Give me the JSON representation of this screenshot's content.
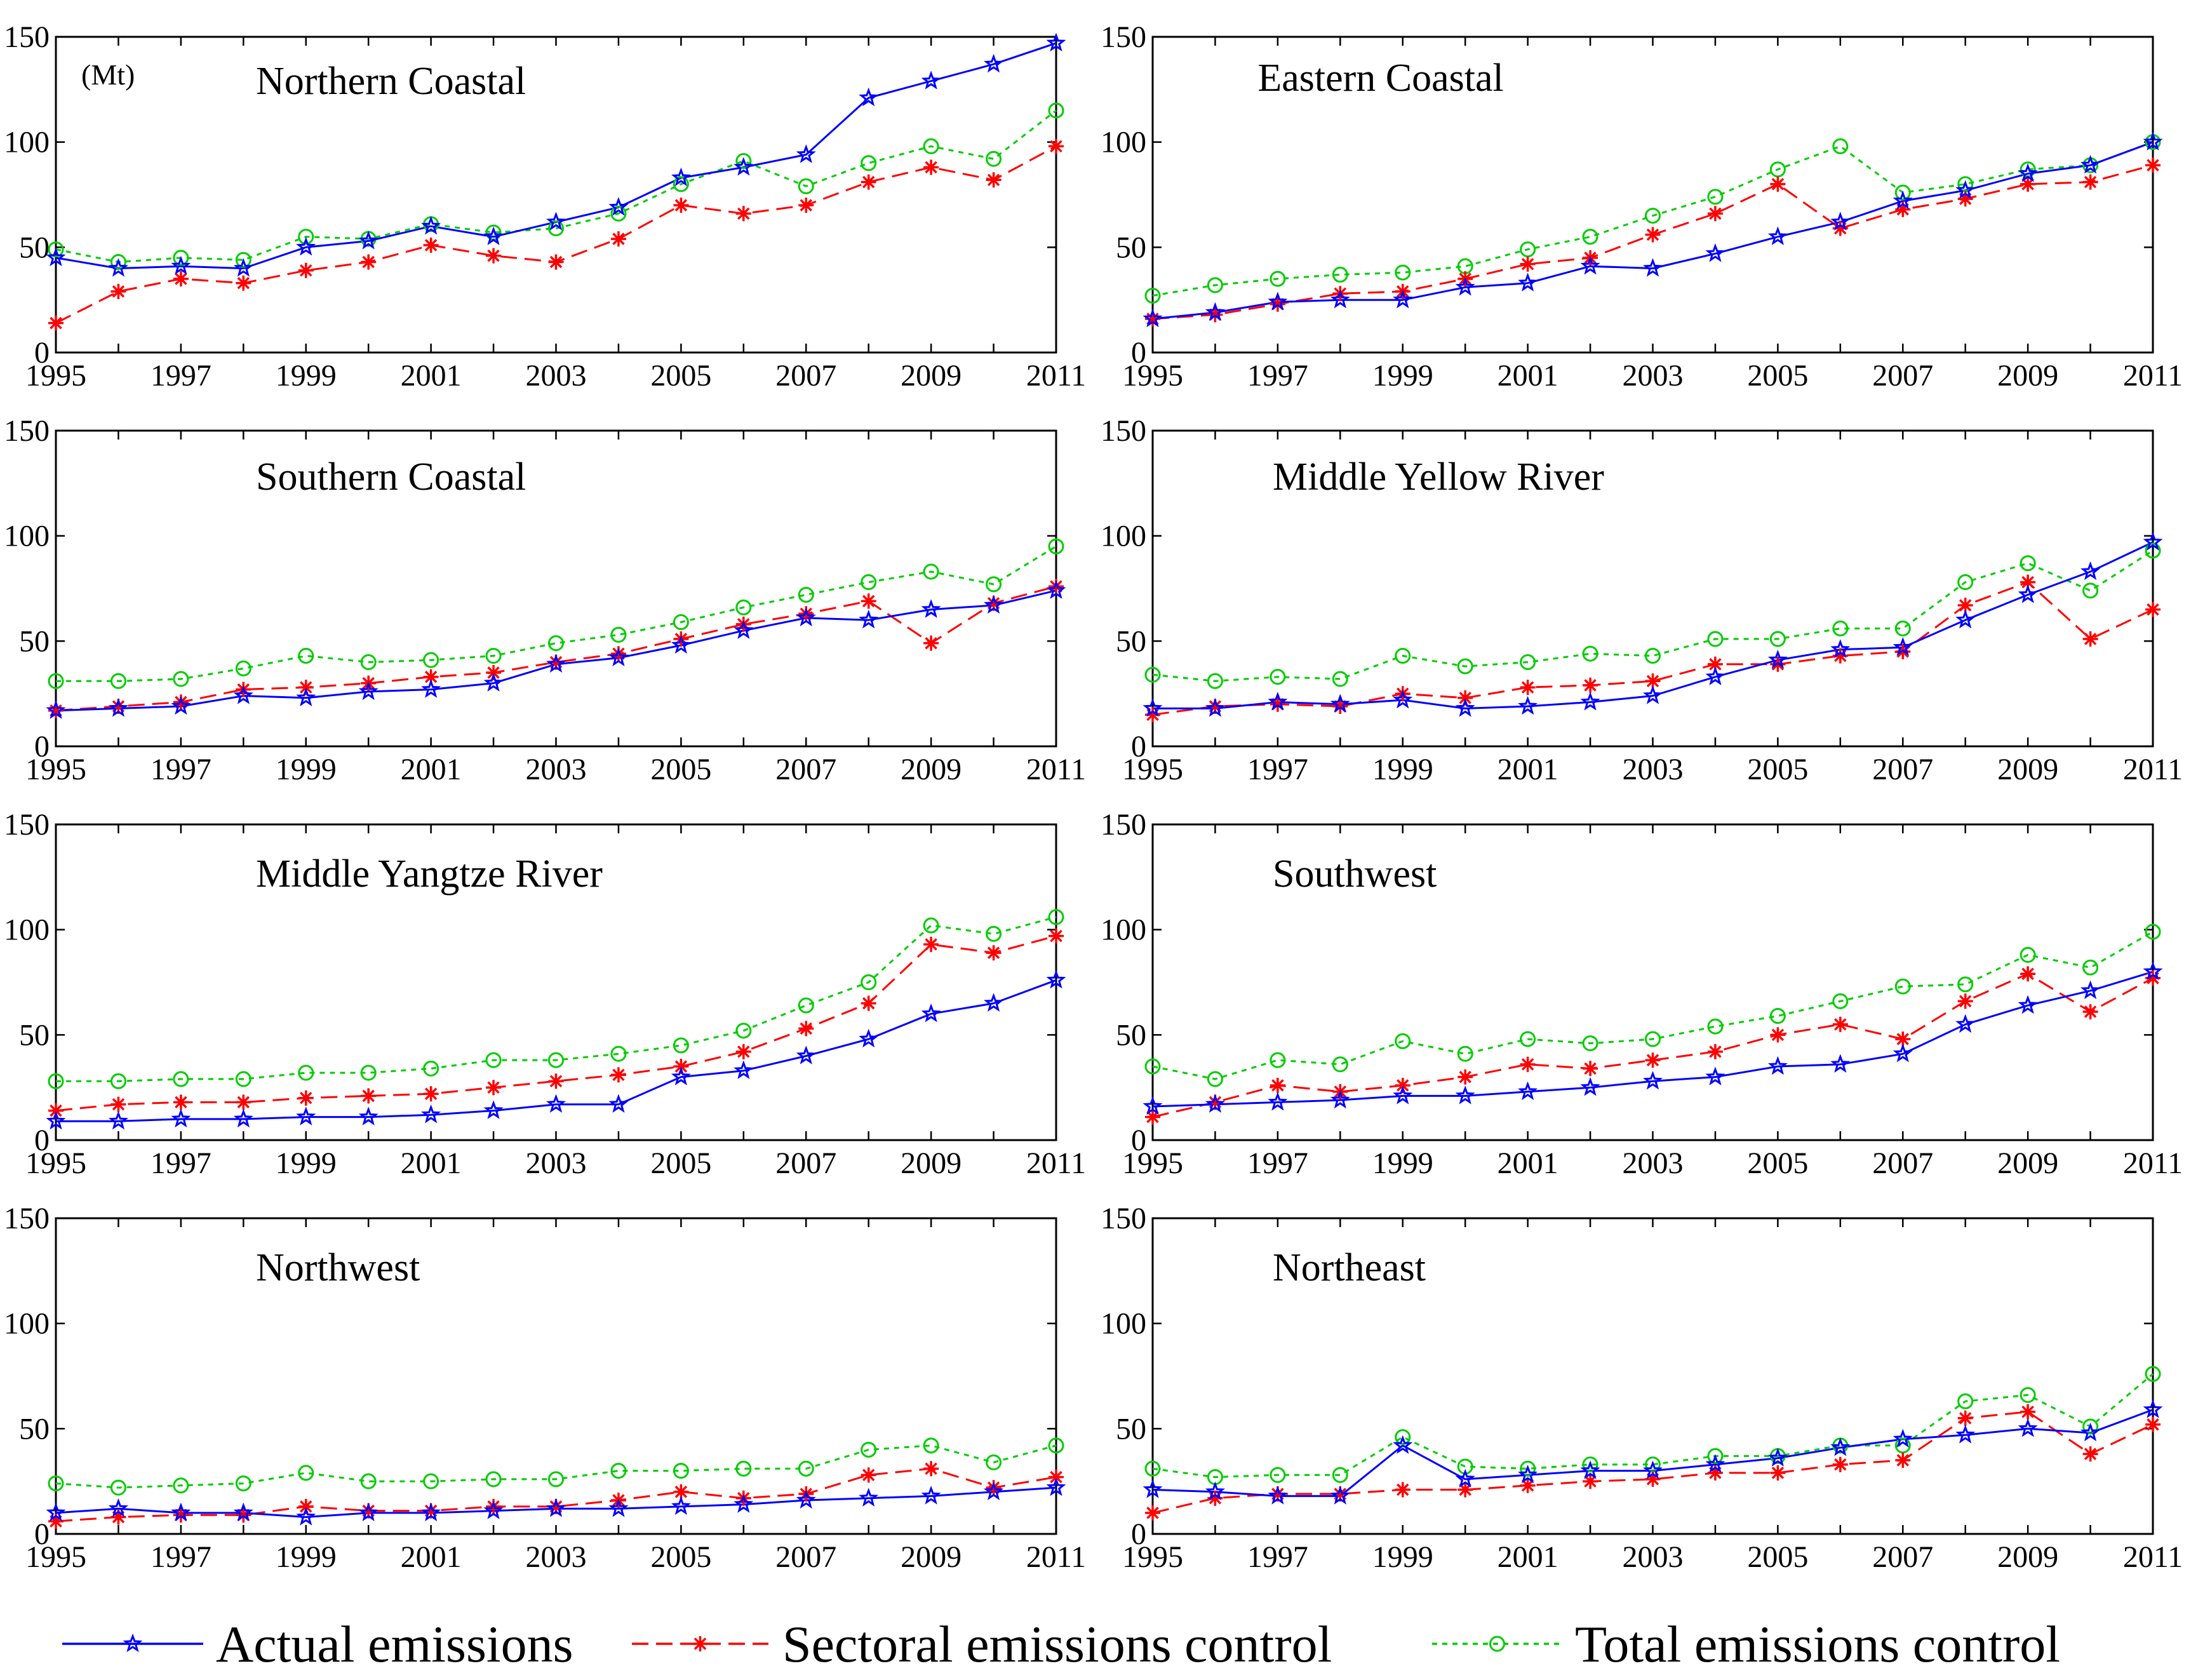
{
  "legend": {
    "actual": "Actual emissions",
    "sectoral": "Sectoral emissions control",
    "total": "Total emissions control"
  },
  "colors": {
    "actual": "#0000ff",
    "sectoral": "#ff0000",
    "total": "#00cc00"
  },
  "chart_data": [
    {
      "type": "line",
      "title": "Northern Coastal",
      "unit": "(Mt)",
      "x": [
        1995,
        1996,
        1997,
        1998,
        1999,
        2000,
        2001,
        2002,
        2003,
        2004,
        2005,
        2006,
        2007,
        2008,
        2009,
        2010,
        2011
      ],
      "ylim": [
        0,
        150
      ],
      "yticks": [
        0,
        50,
        100,
        150
      ],
      "xticks": [
        1995,
        1997,
        1999,
        2001,
        2003,
        2005,
        2007,
        2009,
        2011
      ],
      "series": [
        {
          "name": "Actual emissions",
          "values": [
            45,
            40,
            41,
            40,
            50,
            53,
            60,
            55,
            62,
            69,
            83,
            88,
            94,
            121,
            129,
            137,
            147
          ]
        },
        {
          "name": "Sectoral emissions control",
          "values": [
            14,
            29,
            35,
            33,
            39,
            43,
            51,
            46,
            43,
            54,
            70,
            66,
            70,
            81,
            88,
            82,
            98
          ]
        },
        {
          "name": "Total emissions control",
          "values": [
            49,
            43,
            45,
            44,
            55,
            54,
            61,
            57,
            59,
            66,
            80,
            91,
            79,
            90,
            98,
            92,
            115
          ]
        }
      ]
    },
    {
      "type": "line",
      "title": "Eastern Coastal",
      "x": [
        1995,
        1996,
        1997,
        1998,
        1999,
        2000,
        2001,
        2002,
        2003,
        2004,
        2005,
        2006,
        2007,
        2008,
        2009,
        2010,
        2011
      ],
      "ylim": [
        0,
        150
      ],
      "yticks": [
        0,
        50,
        100,
        150
      ],
      "xticks": [
        1995,
        1997,
        1999,
        2001,
        2003,
        2005,
        2007,
        2009,
        2011
      ],
      "series": [
        {
          "name": "Actual emissions",
          "values": [
            16,
            19,
            24,
            25,
            25,
            31,
            33,
            41,
            40,
            47,
            55,
            62,
            72,
            77,
            85,
            89,
            100
          ]
        },
        {
          "name": "Sectoral emissions control",
          "values": [
            16,
            18,
            23,
            28,
            29,
            35,
            42,
            45,
            56,
            66,
            80,
            59,
            68,
            73,
            80,
            81,
            89
          ]
        },
        {
          "name": "Total emissions control",
          "values": [
            27,
            32,
            35,
            37,
            38,
            41,
            49,
            55,
            65,
            74,
            87,
            98,
            76,
            80,
            87,
            89,
            100
          ]
        }
      ]
    },
    {
      "type": "line",
      "title": "Southern Coastal",
      "x": [
        1995,
        1996,
        1997,
        1998,
        1999,
        2000,
        2001,
        2002,
        2003,
        2004,
        2005,
        2006,
        2007,
        2008,
        2009,
        2010,
        2011
      ],
      "ylim": [
        0,
        150
      ],
      "yticks": [
        0,
        50,
        100,
        150
      ],
      "xticks": [
        1995,
        1997,
        1999,
        2001,
        2003,
        2005,
        2007,
        2009,
        2011
      ],
      "series": [
        {
          "name": "Actual emissions",
          "values": [
            17,
            18,
            19,
            24,
            23,
            26,
            27,
            30,
            39,
            42,
            48,
            55,
            61,
            60,
            65,
            67,
            74
          ]
        },
        {
          "name": "Sectoral emissions control",
          "values": [
            17,
            19,
            21,
            27,
            28,
            30,
            33,
            35,
            40,
            44,
            51,
            58,
            63,
            69,
            49,
            68,
            76
          ]
        },
        {
          "name": "Total emissions control",
          "values": [
            31,
            31,
            32,
            37,
            43,
            40,
            41,
            43,
            49,
            53,
            59,
            66,
            72,
            78,
            83,
            77,
            95
          ]
        }
      ]
    },
    {
      "type": "line",
      "title": "Middle Yellow River",
      "x": [
        1995,
        1996,
        1997,
        1998,
        1999,
        2000,
        2001,
        2002,
        2003,
        2004,
        2005,
        2006,
        2007,
        2008,
        2009,
        2010,
        2011
      ],
      "ylim": [
        0,
        150
      ],
      "yticks": [
        0,
        50,
        100,
        150
      ],
      "xticks": [
        1995,
        1997,
        1999,
        2001,
        2003,
        2005,
        2007,
        2009,
        2011
      ],
      "series": [
        {
          "name": "Actual emissions",
          "values": [
            18,
            18,
            21,
            20,
            22,
            18,
            19,
            21,
            24,
            33,
            41,
            46,
            47,
            60,
            72,
            83,
            97
          ]
        },
        {
          "name": "Sectoral emissions control",
          "values": [
            15,
            19,
            20,
            19,
            25,
            23,
            28,
            29,
            31,
            39,
            39,
            43,
            45,
            67,
            78,
            51,
            65
          ]
        },
        {
          "name": "Total emissions control",
          "values": [
            34,
            31,
            33,
            32,
            43,
            38,
            40,
            44,
            43,
            51,
            51,
            56,
            56,
            78,
            87,
            74,
            93
          ]
        }
      ]
    },
    {
      "type": "line",
      "title": "Middle Yangtze River",
      "x": [
        1995,
        1996,
        1997,
        1998,
        1999,
        2000,
        2001,
        2002,
        2003,
        2004,
        2005,
        2006,
        2007,
        2008,
        2009,
        2010,
        2011
      ],
      "ylim": [
        0,
        150
      ],
      "yticks": [
        0,
        50,
        100,
        150
      ],
      "xticks": [
        1995,
        1997,
        1999,
        2001,
        2003,
        2005,
        2007,
        2009,
        2011
      ],
      "series": [
        {
          "name": "Actual emissions",
          "values": [
            9,
            9,
            10,
            10,
            11,
            11,
            12,
            14,
            17,
            17,
            30,
            33,
            40,
            48,
            60,
            65,
            76
          ]
        },
        {
          "name": "Sectoral emissions control",
          "values": [
            14,
            17,
            18,
            18,
            20,
            21,
            22,
            25,
            28,
            31,
            35,
            42,
            53,
            65,
            93,
            89,
            97
          ]
        },
        {
          "name": "Total emissions control",
          "values": [
            28,
            28,
            29,
            29,
            32,
            32,
            34,
            38,
            38,
            41,
            45,
            52,
            64,
            75,
            102,
            98,
            106
          ]
        }
      ]
    },
    {
      "type": "line",
      "title": "Southwest",
      "x": [
        1995,
        1996,
        1997,
        1998,
        1999,
        2000,
        2001,
        2002,
        2003,
        2004,
        2005,
        2006,
        2007,
        2008,
        2009,
        2010,
        2011
      ],
      "ylim": [
        0,
        150
      ],
      "yticks": [
        0,
        50,
        100,
        150
      ],
      "xticks": [
        1995,
        1997,
        1999,
        2001,
        2003,
        2005,
        2007,
        2009,
        2011
      ],
      "series": [
        {
          "name": "Actual emissions",
          "values": [
            16,
            17,
            18,
            19,
            21,
            21,
            23,
            25,
            28,
            30,
            35,
            36,
            41,
            55,
            64,
            71,
            80
          ]
        },
        {
          "name": "Sectoral emissions control",
          "values": [
            11,
            18,
            26,
            23,
            26,
            30,
            36,
            34,
            38,
            42,
            50,
            55,
            48,
            66,
            79,
            61,
            77
          ]
        },
        {
          "name": "Total emissions control",
          "values": [
            35,
            29,
            38,
            36,
            47,
            41,
            48,
            46,
            48,
            54,
            59,
            66,
            73,
            74,
            88,
            82,
            99
          ]
        }
      ]
    },
    {
      "type": "line",
      "title": "Northwest",
      "x": [
        1995,
        1996,
        1997,
        1998,
        1999,
        2000,
        2001,
        2002,
        2003,
        2004,
        2005,
        2006,
        2007,
        2008,
        2009,
        2010,
        2011
      ],
      "ylim": [
        0,
        150
      ],
      "yticks": [
        0,
        50,
        100,
        150
      ],
      "xticks": [
        1995,
        1997,
        1999,
        2001,
        2003,
        2005,
        2007,
        2009,
        2011
      ],
      "series": [
        {
          "name": "Actual emissions",
          "values": [
            10,
            12,
            10,
            10,
            8,
            10,
            10,
            11,
            12,
            12,
            13,
            14,
            16,
            17,
            18,
            20,
            22
          ]
        },
        {
          "name": "Sectoral emissions control",
          "values": [
            6,
            8,
            9,
            9,
            13,
            11,
            11,
            13,
            13,
            16,
            20,
            17,
            19,
            28,
            31,
            22,
            27
          ]
        },
        {
          "name": "Total emissions control",
          "values": [
            24,
            22,
            23,
            24,
            29,
            25,
            25,
            26,
            26,
            30,
            30,
            31,
            31,
            40,
            42,
            34,
            42
          ]
        }
      ]
    },
    {
      "type": "line",
      "title": "Northeast",
      "x": [
        1995,
        1996,
        1997,
        1998,
        1999,
        2000,
        2001,
        2002,
        2003,
        2004,
        2005,
        2006,
        2007,
        2008,
        2009,
        2010,
        2011
      ],
      "ylim": [
        0,
        150
      ],
      "yticks": [
        0,
        50,
        100,
        150
      ],
      "xticks": [
        1995,
        1997,
        1999,
        2001,
        2003,
        2005,
        2007,
        2009,
        2011
      ],
      "series": [
        {
          "name": "Actual emissions",
          "values": [
            21,
            20,
            18,
            18,
            42,
            26,
            28,
            30,
            30,
            33,
            36,
            41,
            45,
            47,
            50,
            48,
            59
          ]
        },
        {
          "name": "Sectoral emissions control",
          "values": [
            10,
            17,
            19,
            19,
            21,
            21,
            23,
            25,
            26,
            29,
            29,
            33,
            35,
            55,
            58,
            38,
            52
          ]
        },
        {
          "name": "Total emissions control",
          "values": [
            31,
            27,
            28,
            28,
            46,
            32,
            31,
            33,
            33,
            37,
            37,
            42,
            42,
            63,
            66,
            51,
            76
          ]
        }
      ]
    }
  ]
}
